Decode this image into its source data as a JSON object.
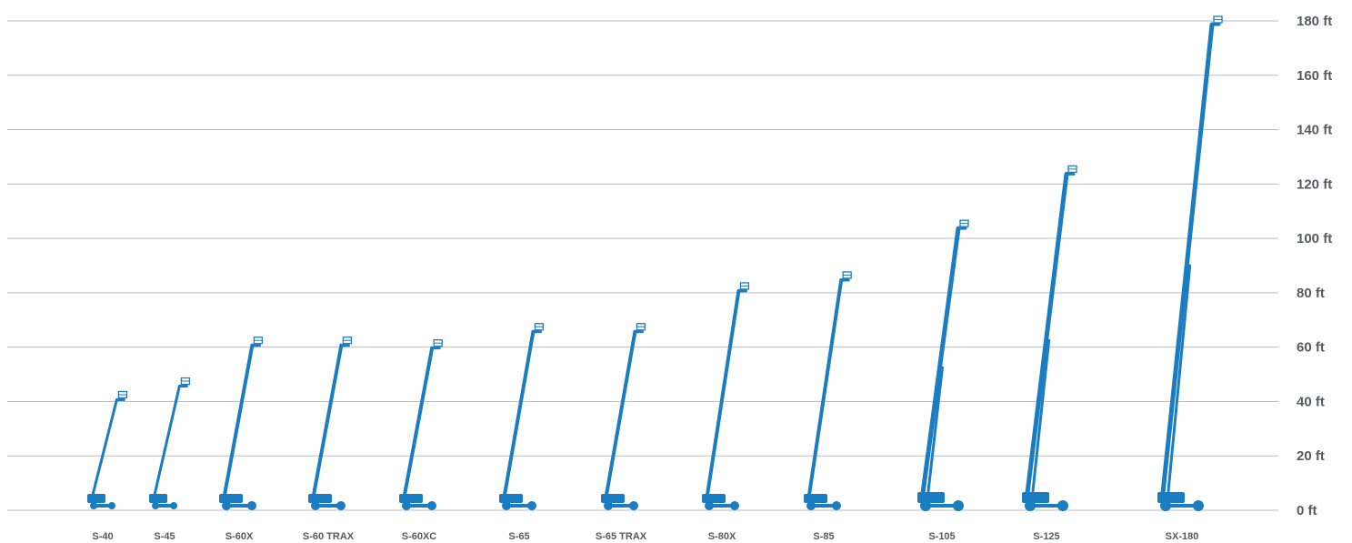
{
  "chart_data": {
    "type": "bar",
    "title": "",
    "xlabel": "",
    "ylabel": "",
    "ylim": [
      0,
      180
    ],
    "y_unit_suffix": " ft",
    "y_ticks": [
      0,
      20,
      40,
      60,
      80,
      100,
      120,
      140,
      160,
      180
    ],
    "y_tick_labels": [
      "0 ft",
      "20 ft",
      "40 ft",
      "60 ft",
      "80 ft",
      "100 ft",
      "120 ft",
      "140 ft",
      "160 ft",
      "180 ft"
    ],
    "y_axis_position": "right",
    "grid": true,
    "mark_style": "boom-lift-silhouette",
    "color": "#1a7cc1",
    "categories": [
      "S-40",
      "S-45",
      "S-60X",
      "S-60 TRAX",
      "S-60XC",
      "S-65",
      "S-65 TRAX",
      "S-80X",
      "S-85",
      "S-105",
      "S-125",
      "SX-180"
    ],
    "values": [
      42,
      47,
      62,
      62,
      61,
      67,
      67,
      82,
      86,
      105,
      125,
      180
    ]
  }
}
